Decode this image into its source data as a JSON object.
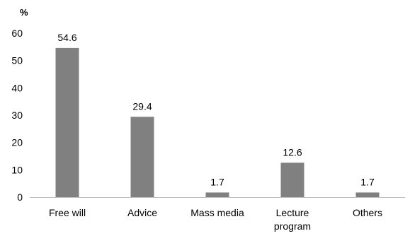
{
  "chart_data": {
    "type": "bar",
    "unit_label": "%",
    "categories": [
      "Free will",
      "Advice",
      "Mass media",
      "Lecture program",
      "Others"
    ],
    "category_lines": [
      [
        "Free will"
      ],
      [
        "Advice"
      ],
      [
        "Mass media"
      ],
      [
        "Lecture",
        "program"
      ],
      [
        "Others"
      ]
    ],
    "values": [
      54.6,
      29.4,
      1.7,
      12.6,
      1.7
    ],
    "value_labels": [
      "54.6",
      "29.4",
      "1.7",
      "12.6",
      "1.7"
    ],
    "ylim": [
      0,
      60
    ],
    "yticks": [
      0,
      10,
      20,
      30,
      40,
      50,
      60
    ],
    "grid": false,
    "bar_color": "#808080",
    "axis_color": "#bfbfbf"
  }
}
